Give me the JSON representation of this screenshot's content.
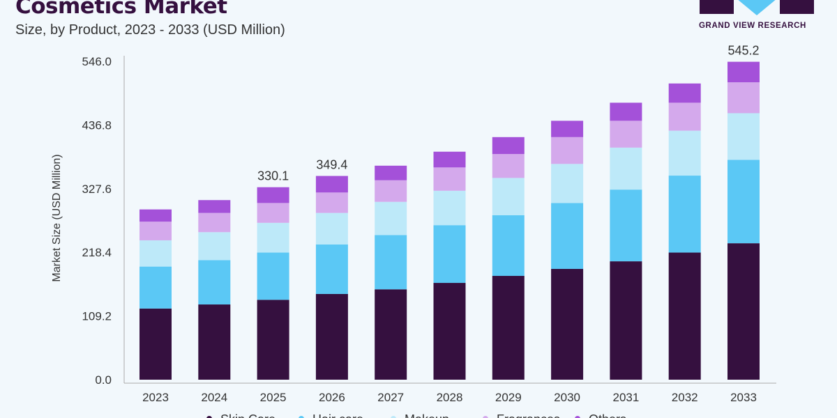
{
  "header": {
    "title": "Cosmetics Market",
    "subtitle": "Size, by Product, 2023 - 2033 (USD Million)",
    "logo_text": "GRAND VIEW RESEARCH"
  },
  "chart_data": {
    "type": "bar",
    "stacked": true,
    "title": "Cosmetics Market",
    "subtitle": "Size, by Product, 2023 - 2033 (USD Million)",
    "ylabel": "Market Size (USD Million)",
    "xlabel": "",
    "ylim": [
      0,
      546
    ],
    "yticks": [
      "0.0",
      "109.2",
      "218.4",
      "327.6",
      "436.8",
      "546.0"
    ],
    "categories": [
      "2023",
      "2024",
      "2025",
      "2026",
      "2027",
      "2028",
      "2029",
      "2030",
      "2031",
      "2032",
      "2033"
    ],
    "series": [
      {
        "name": "Skin Care",
        "color": "#35103f",
        "values": [
          122,
          129,
          137,
          147,
          155,
          166,
          178,
          190,
          203,
          218,
          234
        ]
      },
      {
        "name": "Hair care",
        "color": "#5bc8f5",
        "values": [
          72,
          76,
          81,
          85,
          93,
          99,
          104,
          113,
          123,
          132,
          143
        ]
      },
      {
        "name": "Makeup",
        "color": "#bde9f9",
        "values": [
          45,
          48,
          51,
          54,
          57,
          59,
          64,
          67,
          72,
          77,
          80
        ]
      },
      {
        "name": "Fragrances",
        "color": "#d4a9ec",
        "values": [
          32,
          33,
          34,
          35,
          37,
          40,
          41,
          46,
          46,
          48,
          53
        ]
      },
      {
        "name": "Others",
        "color": "#a451d9",
        "values": [
          21,
          22,
          27.1,
          28.4,
          25,
          27,
          29,
          28,
          31,
          33,
          35.2
        ]
      }
    ],
    "data_labels": [
      {
        "category": "2025",
        "text": "330.1"
      },
      {
        "category": "2026",
        "text": "349.4"
      },
      {
        "category": "2033",
        "text": "545.2"
      }
    ],
    "grid": false,
    "legend": "bottom"
  }
}
